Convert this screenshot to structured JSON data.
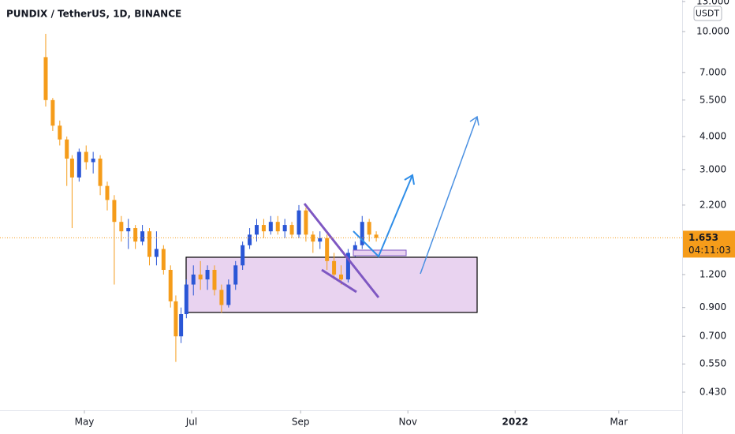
{
  "chart_data": {
    "type": "candlestick",
    "title": "PUNDIX / TetherUS, 1D, BINANCE",
    "currency": "USDT",
    "log_scale": true,
    "up_color": "#2a56d6",
    "down_color": "#f59c1a",
    "last_price": 1.653,
    "countdown": "04:11:03",
    "xlim": [
      72,
      460
    ],
    "ylim": [
      0.367,
      13.17
    ],
    "xticks": [
      {
        "value": 120,
        "label": "May"
      },
      {
        "value": 181,
        "label": "Jul"
      },
      {
        "value": 243,
        "label": "Sep"
      },
      {
        "value": 304,
        "label": "Nov"
      },
      {
        "value": 365,
        "label": "2022"
      },
      {
        "value": 424,
        "label": "Mar"
      }
    ],
    "yticks": [
      {
        "value": 0.43,
        "label": "0.430"
      },
      {
        "value": 0.55,
        "label": "0.550"
      },
      {
        "value": 0.7,
        "label": "0.700"
      },
      {
        "value": 0.9,
        "label": "0.900"
      },
      {
        "value": 1.2,
        "label": "1.200"
      },
      {
        "value": 2.2,
        "label": "2.200"
      },
      {
        "value": 3,
        "label": "3.000"
      },
      {
        "value": 4,
        "label": "4.000"
      },
      {
        "value": 5.5,
        "label": "5.500"
      },
      {
        "value": 7,
        "label": "7.000"
      },
      {
        "value": 10,
        "label": "10.000"
      },
      {
        "value": 13,
        "label": "13.000"
      }
    ],
    "x": [
      98,
      102,
      106,
      110,
      113,
      117,
      121,
      125,
      129,
      133,
      137,
      141,
      145,
      149,
      153,
      157,
      161,
      165,
      169,
      172,
      175,
      178,
      182,
      186,
      190,
      194,
      198,
      202,
      206,
      210,
      214,
      218,
      222,
      226,
      230,
      234,
      238,
      242,
      246,
      250,
      254,
      258,
      262,
      266,
      270,
      274,
      278,
      282,
      286
    ],
    "open": [
      8.0,
      5.5,
      4.4,
      3.9,
      3.3,
      2.8,
      3.5,
      3.2,
      3.3,
      2.6,
      2.3,
      1.9,
      1.75,
      1.8,
      1.6,
      1.75,
      1.4,
      1.5,
      1.25,
      0.95,
      0.7,
      0.85,
      1.1,
      1.2,
      1.15,
      1.25,
      1.05,
      0.92,
      1.1,
      1.3,
      1.55,
      1.7,
      1.85,
      1.75,
      1.9,
      1.75,
      1.85,
      1.7,
      2.1,
      1.7,
      1.6,
      1.65,
      1.35,
      1.2,
      1.15,
      1.45,
      1.55,
      1.9,
      1.7
    ],
    "high": [
      9.8,
      5.6,
      4.6,
      4.0,
      3.4,
      3.6,
      3.7,
      3.5,
      3.4,
      2.7,
      2.4,
      2.0,
      1.95,
      1.85,
      1.85,
      1.8,
      1.75,
      1.55,
      1.3,
      1.0,
      0.9,
      1.15,
      1.3,
      1.35,
      1.3,
      1.3,
      1.1,
      1.15,
      1.35,
      1.6,
      1.8,
      1.95,
      1.95,
      2.0,
      2.0,
      1.95,
      1.9,
      2.2,
      2.15,
      1.75,
      1.75,
      1.7,
      1.45,
      1.3,
      1.5,
      1.6,
      2.0,
      1.95,
      1.75
    ],
    "low": [
      5.2,
      4.2,
      3.7,
      2.6,
      1.8,
      2.7,
      3.0,
      2.9,
      2.4,
      2.1,
      1.1,
      1.6,
      1.5,
      1.5,
      1.55,
      1.3,
      1.3,
      1.2,
      0.9,
      0.56,
      0.66,
      0.82,
      1.0,
      1.05,
      1.05,
      1.0,
      0.86,
      0.9,
      1.05,
      1.25,
      1.5,
      1.6,
      1.65,
      1.7,
      1.7,
      1.65,
      1.65,
      1.65,
      1.6,
      1.45,
      1.5,
      1.25,
      1.15,
      1.1,
      1.12,
      1.4,
      1.5,
      1.6,
      1.6
    ],
    "close": [
      5.5,
      4.4,
      3.9,
      3.3,
      2.8,
      3.5,
      3.2,
      3.3,
      2.6,
      2.3,
      1.9,
      1.75,
      1.8,
      1.6,
      1.75,
      1.4,
      1.5,
      1.25,
      0.95,
      0.7,
      0.85,
      1.1,
      1.2,
      1.15,
      1.25,
      1.05,
      0.92,
      1.1,
      1.3,
      1.55,
      1.7,
      1.85,
      1.75,
      1.9,
      1.75,
      1.85,
      1.7,
      2.1,
      1.7,
      1.6,
      1.65,
      1.35,
      1.2,
      1.15,
      1.45,
      1.55,
      1.9,
      1.7,
      1.653
    ]
  }
}
